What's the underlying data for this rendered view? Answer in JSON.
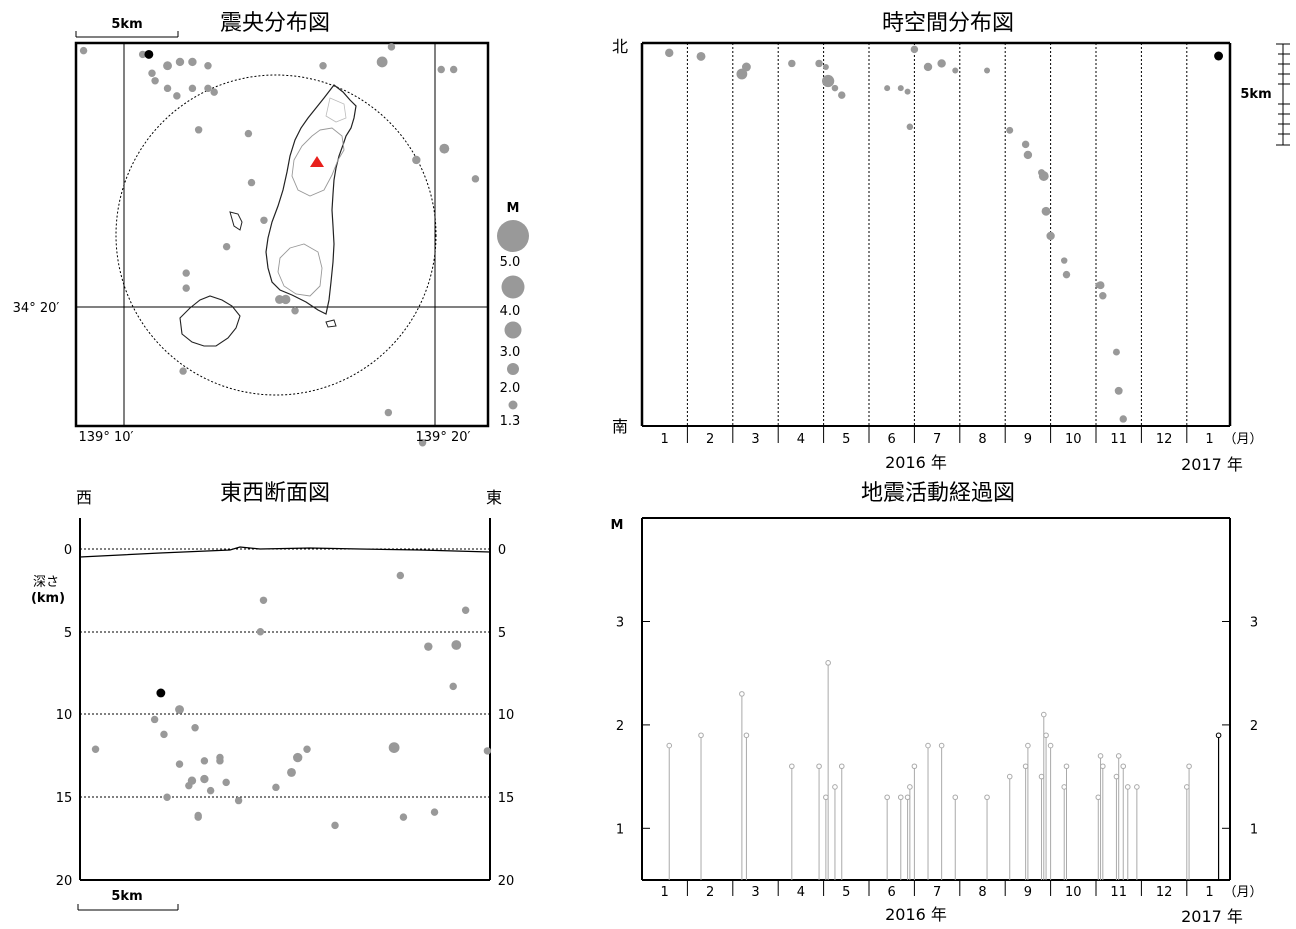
{
  "map": {
    "title": "震央分布図",
    "scale_label": "5km",
    "lat_label": "34° 20′",
    "lon_labels": [
      "139° 10′",
      "139° 20′"
    ],
    "volcano_color": "#e8201c"
  },
  "legend": {
    "title": "M",
    "labels": [
      "5.0",
      "4.0",
      "3.0",
      "2.0",
      "1.3"
    ],
    "magnitudes": [
      5.0,
      4.0,
      3.0,
      2.0,
      1.3
    ]
  },
  "cross_section": {
    "title": "東西断面図",
    "west_label": "西",
    "east_label": "東",
    "depth_label_1": "深さ",
    "depth_label_2": "(km)",
    "depth_ticks": [
      "0",
      "5",
      "10",
      "15",
      "20"
    ],
    "scale_label": "5km"
  },
  "spacetime": {
    "title": "時空間分布図",
    "north_label": "北",
    "south_label": "南",
    "scale_label": "5km"
  },
  "timeline": {
    "month_labels": [
      "1",
      "2",
      "3",
      "4",
      "5",
      "6",
      "7",
      "8",
      "9",
      "10",
      "11",
      "12",
      "1"
    ],
    "month_unit": "（月）",
    "year_2016": "2016 年",
    "year_2017": "2017 年"
  },
  "mt_chart": {
    "title": "地震活動経過図",
    "y_label": "M",
    "y_ticks": [
      "1",
      "2",
      "3"
    ]
  },
  "colors": {
    "event": "#999999",
    "latest_event": "#000000",
    "bar": "#aaaaaa",
    "grid": "#000000"
  },
  "chart_data": [
    {
      "type": "scatter",
      "title": "震央分布図",
      "x_range": [
        "139° 08′",
        "139° 24′"
      ],
      "y_range": [
        "34° 16′",
        "34° 27′"
      ],
      "note": "epicenter map; points listed as [lon_minute, lat_minute, M] east of 139°00′ and north of 34°00′",
      "points": [
        [
          8.7,
          26.8,
          1.6
        ],
        [
          10.6,
          26.7,
          1.6
        ],
        [
          10.9,
          26.2,
          1.6
        ],
        [
          11.4,
          26.4,
          1.9
        ],
        [
          11.8,
          26.5,
          1.8
        ],
        [
          12.2,
          26.5,
          1.8
        ],
        [
          12.7,
          26.4,
          1.6
        ],
        [
          11.0,
          26.0,
          1.6
        ],
        [
          11.4,
          25.8,
          1.6
        ],
        [
          11.7,
          25.6,
          1.6
        ],
        [
          12.2,
          25.8,
          1.6
        ],
        [
          12.7,
          25.8,
          1.6
        ],
        [
          12.9,
          25.7,
          1.6
        ],
        [
          12.4,
          24.7,
          1.6
        ],
        [
          18.6,
          26.9,
          1.6
        ],
        [
          16.4,
          26.4,
          1.6
        ],
        [
          18.3,
          26.5,
          2.3
        ],
        [
          20.2,
          26.3,
          1.6
        ],
        [
          20.6,
          26.3,
          1.6
        ],
        [
          14.0,
          24.6,
          1.6
        ],
        [
          20.3,
          24.2,
          2.1
        ],
        [
          19.4,
          23.9,
          1.8
        ],
        [
          21.3,
          23.4,
          1.6
        ],
        [
          14.1,
          23.3,
          1.6
        ],
        [
          14.5,
          22.3,
          1.6
        ],
        [
          13.3,
          21.6,
          1.6
        ],
        [
          12.0,
          20.9,
          1.6
        ],
        [
          12.0,
          20.5,
          1.6
        ],
        [
          15.0,
          20.2,
          1.9
        ],
        [
          15.2,
          20.2,
          2.0
        ],
        [
          15.5,
          19.9,
          1.6
        ],
        [
          11.9,
          18.3,
          1.6
        ],
        [
          18.5,
          17.2,
          1.6
        ],
        [
          19.6,
          16.4,
          1.6
        ]
      ],
      "latest_point": [
        10.8,
        26.7,
        1.9
      ]
    },
    {
      "type": "scatter",
      "title": "東西断面図",
      "x_label": "西–東",
      "y_label": "深さ (km)",
      "ylim": [
        0,
        20
      ],
      "points_depth_km": [
        12.1,
        10.3,
        11.2,
        9.7,
        14.0,
        13.9,
        12.8,
        15.0,
        13.0,
        14.3,
        12.8,
        12.6,
        14.1,
        14.6,
        16.2,
        16.7,
        12.0,
        8.3,
        3.7,
        5.0,
        5.8,
        5.9,
        12.2,
        3.1,
        14.4,
        15.2,
        16.1,
        16.2,
        13.5,
        12.6,
        12.1,
        10.8,
        1.6,
        15.9,
        14.4,
        10.9
      ],
      "latest_depth_km": 8.7
    },
    {
      "type": "scatter",
      "title": "時空間分布図",
      "x_label": "2016 年 – 2017 年",
      "y_label": "南–北"
    },
    {
      "type": "bar",
      "title": "地震活動経過図",
      "x_label": "2016 年 – 2017 年",
      "y_label": "M",
      "ylim": [
        0.5,
        4.0
      ],
      "events_month_M": [
        [
          1.1,
          1.8
        ],
        [
          1.8,
          1.9
        ],
        [
          2.7,
          2.3
        ],
        [
          2.8,
          1.9
        ],
        [
          3.8,
          1.6
        ],
        [
          4.4,
          1.6
        ],
        [
          4.55,
          1.3
        ],
        [
          4.6,
          2.6
        ],
        [
          4.75,
          1.4
        ],
        [
          4.9,
          1.6
        ],
        [
          5.9,
          1.3
        ],
        [
          6.2,
          1.3
        ],
        [
          6.35,
          1.3
        ],
        [
          6.4,
          1.4
        ],
        [
          6.5,
          1.6
        ],
        [
          6.8,
          1.8
        ],
        [
          7.1,
          1.8
        ],
        [
          7.4,
          1.3
        ],
        [
          8.1,
          1.3
        ],
        [
          8.6,
          1.5
        ],
        [
          8.95,
          1.6
        ],
        [
          9.0,
          1.8
        ],
        [
          9.3,
          1.5
        ],
        [
          9.35,
          2.1
        ],
        [
          9.4,
          1.9
        ],
        [
          9.5,
          1.8
        ],
        [
          9.8,
          1.4
        ],
        [
          9.85,
          1.6
        ],
        [
          10.55,
          1.3
        ],
        [
          10.6,
          1.7
        ],
        [
          10.65,
          1.6
        ],
        [
          10.95,
          1.5
        ],
        [
          11.0,
          1.7
        ],
        [
          11.1,
          1.6
        ],
        [
          11.2,
          1.4
        ],
        [
          11.4,
          1.4
        ],
        [
          12.5,
          1.4
        ],
        [
          12.55,
          1.6
        ]
      ],
      "latest_event_month_M": [
        13.2,
        1.9
      ]
    }
  ]
}
